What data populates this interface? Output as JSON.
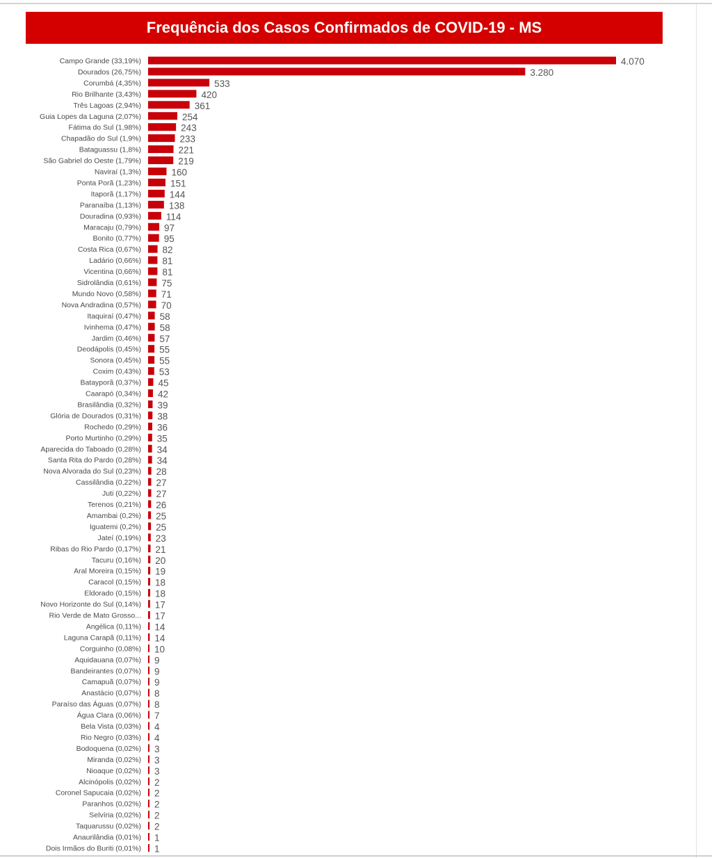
{
  "chart_data": {
    "type": "bar",
    "orientation": "horizontal",
    "title": "Frequência dos Casos Confirmados de COVID-19 - MS",
    "xlabel": "",
    "ylabel": "",
    "bar_color": "#c8000a",
    "title_bg_color": "#d40000",
    "grid": false,
    "categories": [
      "Campo Grande (33,19%)",
      "Dourados (26,75%)",
      "Corumbá (4,35%)",
      "Rio Brilhante (3,43%)",
      "Três Lagoas (2,94%)",
      "Guia Lopes da Laguna (2,07%)",
      "Fátima do Sul (1,98%)",
      "Chapadão do Sul (1,9%)",
      "Bataguassu (1,8%)",
      "São Gabriel do Oeste (1,79%)",
      "Naviraí (1,3%)",
      "Ponta Porã (1,23%)",
      "Itaporã (1,17%)",
      "Paranaíba (1,13%)",
      "Douradina (0,93%)",
      "Maracaju (0,79%)",
      "Bonito (0,77%)",
      "Costa Rica (0,67%)",
      "Ladário (0,66%)",
      "Vicentina (0,66%)",
      "Sidrolândia (0,61%)",
      "Mundo Novo (0,58%)",
      "Nova Andradina (0,57%)",
      "Itaquiraí (0,47%)",
      "Ivinhema (0,47%)",
      "Jardim (0,46%)",
      "Deodápolis (0,45%)",
      "Sonora (0,45%)",
      "Coxim (0,43%)",
      "Batayporã (0,37%)",
      "Caarapó (0,34%)",
      "Brasilândia (0,32%)",
      "Glória de Dourados (0,31%)",
      "Rochedo (0,29%)",
      "Porto Murtinho (0,29%)",
      "Aparecida do Taboado (0,28%)",
      "Santa Rita do Pardo (0,28%)",
      "Nova Alvorada do Sul (0,23%)",
      "Cassilândia (0,22%)",
      "Juti (0,22%)",
      "Terenos (0,21%)",
      "Amambai (0,2%)",
      "Iguatemi (0,2%)",
      "Jateí (0,19%)",
      "Ribas do Rio Pardo (0,17%)",
      "Tacuru (0,16%)",
      "Aral Moreira (0,15%)",
      "Caracol (0,15%)",
      "Eldorado (0,15%)",
      "Novo Horizonte do Sul (0,14%)",
      "Rio Verde de Mato Grosso...",
      "Angélica (0,11%)",
      "Laguna Carapã (0,11%)",
      "Corguinho (0,08%)",
      "Aquidauana (0,07%)",
      "Bandeirantes (0,07%)",
      "Camapuã (0,07%)",
      "Anastácio (0,07%)",
      "Paraíso das Águas (0,07%)",
      "Água Clara (0,06%)",
      "Bela Vista (0,03%)",
      "Rio Negro (0,03%)",
      "Bodoquena (0,02%)",
      "Miranda (0,02%)",
      "Nioaque (0,02%)",
      "Alcinópolis (0,02%)",
      "Coronel Sapucaia (0,02%)",
      "Paranhos (0,02%)",
      "Selvíria (0,02%)",
      "Taquarussu (0,02%)",
      "Anaurilândia (0,01%)",
      "Dois Irmãos do Buriti (0,01%)"
    ],
    "values": [
      4070,
      3280,
      533,
      420,
      361,
      254,
      243,
      233,
      221,
      219,
      160,
      151,
      144,
      138,
      114,
      97,
      95,
      82,
      81,
      81,
      75,
      71,
      70,
      58,
      58,
      57,
      55,
      55,
      53,
      45,
      42,
      39,
      38,
      36,
      35,
      34,
      34,
      28,
      27,
      27,
      26,
      25,
      25,
      23,
      21,
      20,
      19,
      18,
      18,
      17,
      17,
      14,
      14,
      10,
      9,
      9,
      9,
      8,
      8,
      7,
      4,
      4,
      3,
      3,
      3,
      2,
      2,
      2,
      2,
      2,
      1,
      1
    ],
    "value_labels": [
      "4.070",
      "3.280",
      "533",
      "420",
      "361",
      "254",
      "243",
      "233",
      "221",
      "219",
      "160",
      "151",
      "144",
      "138",
      "114",
      "97",
      "95",
      "82",
      "81",
      "81",
      "75",
      "71",
      "70",
      "58",
      "58",
      "57",
      "55",
      "55",
      "53",
      "45",
      "42",
      "39",
      "38",
      "36",
      "35",
      "34",
      "34",
      "28",
      "27",
      "27",
      "26",
      "25",
      "25",
      "23",
      "21",
      "20",
      "19",
      "18",
      "18",
      "17",
      "17",
      "14",
      "14",
      "10",
      "9",
      "9",
      "9",
      "8",
      "8",
      "7",
      "4",
      "4",
      "3",
      "3",
      "3",
      "2",
      "2",
      "2",
      "2",
      "2",
      "1",
      "1"
    ],
    "xlim": [
      0,
      4070
    ]
  }
}
